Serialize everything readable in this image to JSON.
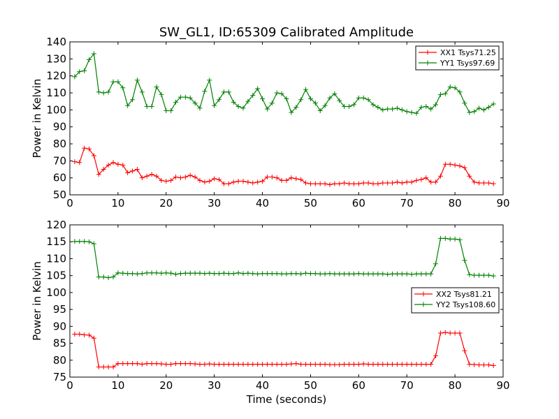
{
  "title": "SW_GL1, ID:65309 Calibrated Amplitude",
  "colors": {
    "red": "#ff0000",
    "green": "#008000",
    "axes": "#000000",
    "background": "#ffffff"
  },
  "chart_data": [
    {
      "type": "line",
      "title": "SW_GL1, ID:65309 Calibrated Amplitude",
      "xlabel": "",
      "ylabel": "Power in Kelvin",
      "xlim": [
        0,
        90
      ],
      "ylim": [
        50,
        140
      ],
      "xticks": [
        0,
        10,
        20,
        30,
        40,
        50,
        60,
        70,
        80,
        90
      ],
      "yticks": [
        50,
        60,
        70,
        80,
        90,
        100,
        110,
        120,
        130,
        140
      ],
      "grid": false,
      "legend_position": "top-right",
      "x": [
        1,
        2,
        3,
        4,
        5,
        6,
        7,
        8,
        9,
        10,
        11,
        12,
        13,
        14,
        15,
        16,
        17,
        18,
        19,
        20,
        21,
        22,
        23,
        24,
        25,
        26,
        27,
        28,
        29,
        30,
        31,
        32,
        33,
        34,
        35,
        36,
        37,
        38,
        39,
        40,
        41,
        42,
        43,
        44,
        45,
        46,
        47,
        48,
        49,
        50,
        51,
        52,
        53,
        54,
        55,
        56,
        57,
        58,
        59,
        60,
        61,
        62,
        63,
        64,
        65,
        66,
        67,
        68,
        69,
        70,
        71,
        72,
        73,
        74,
        75,
        76,
        77,
        78,
        79,
        80,
        81,
        82,
        83,
        84,
        85,
        86,
        87,
        88
      ],
      "series": [
        {
          "name": "XX1 Tsys71.25",
          "color": "#ff0000",
          "values": [
            69.5,
            69,
            77.5,
            77,
            73,
            62,
            65,
            67.5,
            69,
            68,
            67.5,
            63,
            64,
            65,
            60,
            61,
            62,
            61,
            58.5,
            58,
            58.5,
            60.5,
            60,
            60.5,
            61.5,
            60.5,
            58.5,
            57.5,
            58,
            59.5,
            59,
            56.5,
            56.5,
            57.5,
            58,
            58,
            57.5,
            57,
            57.5,
            58,
            60.5,
            60.5,
            60,
            58.5,
            58.5,
            60,
            59.5,
            59,
            57,
            56.5,
            56.5,
            56.5,
            56.5,
            56,
            56.5,
            56.5,
            57,
            56.5,
            56.5,
            56.5,
            57,
            57,
            56.5,
            56.5,
            57,
            57,
            57,
            57.5,
            57,
            57.5,
            57.5,
            58.5,
            59,
            60,
            57.5,
            57.5,
            61,
            68,
            68,
            67.5,
            67,
            66,
            61,
            57.5,
            57,
            57,
            57,
            56.5
          ]
        },
        {
          "name": "YY1 Tsys97.69",
          "color": "#008000",
          "values": [
            119.5,
            122.5,
            123,
            129.5,
            133,
            110.5,
            110,
            110.5,
            116.5,
            116.5,
            113,
            102.5,
            106,
            117.5,
            110.5,
            102,
            102,
            113.5,
            109,
            99.5,
            99.5,
            104.5,
            107.5,
            107.5,
            107,
            104,
            101,
            111,
            117.5,
            102.5,
            106,
            110.5,
            110.5,
            104.5,
            102,
            101,
            105,
            108.5,
            112.5,
            106.5,
            100.5,
            104,
            110,
            109.5,
            106.5,
            98.5,
            101.5,
            106,
            112,
            106.5,
            104,
            99.5,
            102.5,
            107,
            109.5,
            105.5,
            102,
            102,
            103,
            107,
            107,
            106,
            103,
            101.5,
            100,
            100.5,
            100.5,
            101,
            100,
            99,
            98.5,
            98,
            101.5,
            102,
            100.5,
            103,
            109,
            109.5,
            113.5,
            113,
            110.5,
            104,
            98.5,
            99,
            101,
            100,
            101.5,
            103.5
          ]
        }
      ]
    },
    {
      "type": "line",
      "title": "",
      "xlabel": "Time (seconds)",
      "ylabel": "Power in Kelvin",
      "xlim": [
        0,
        90
      ],
      "ylim": [
        75,
        120
      ],
      "xticks": [
        0,
        10,
        20,
        30,
        40,
        50,
        60,
        70,
        80,
        90
      ],
      "yticks": [
        75,
        80,
        85,
        90,
        95,
        100,
        105,
        110,
        115,
        120
      ],
      "grid": false,
      "legend_position": "center-right",
      "x": [
        1,
        2,
        3,
        4,
        5,
        6,
        7,
        8,
        9,
        10,
        11,
        12,
        13,
        14,
        15,
        16,
        17,
        18,
        19,
        20,
        21,
        22,
        23,
        24,
        25,
        26,
        27,
        28,
        29,
        30,
        31,
        32,
        33,
        34,
        35,
        36,
        37,
        38,
        39,
        40,
        41,
        42,
        43,
        44,
        45,
        46,
        47,
        48,
        49,
        50,
        51,
        52,
        53,
        54,
        55,
        56,
        57,
        58,
        59,
        60,
        61,
        62,
        63,
        64,
        65,
        66,
        67,
        68,
        69,
        70,
        71,
        72,
        73,
        74,
        75,
        76,
        77,
        78,
        79,
        80,
        81,
        82,
        83,
        84,
        85,
        86,
        87,
        88
      ],
      "series": [
        {
          "name": "XX2 Tsys81.21",
          "color": "#ff0000",
          "values": [
            87.7,
            87.7,
            87.5,
            87.4,
            86.5,
            78,
            78,
            78,
            78,
            79,
            79,
            79,
            79,
            79,
            78.8,
            79,
            79,
            79,
            78.9,
            78.8,
            78.8,
            79,
            79,
            79,
            79,
            78.9,
            78.8,
            78.8,
            78.9,
            78.8,
            78.8,
            78.8,
            78.8,
            78.8,
            78.8,
            78.8,
            78.8,
            78.8,
            78.8,
            78.8,
            78.8,
            78.8,
            78.8,
            78.8,
            78.8,
            78.9,
            79,
            78.8,
            78.8,
            78.8,
            78.8,
            78.8,
            78.8,
            78.7,
            78.7,
            78.7,
            78.8,
            78.8,
            78.8,
            78.8,
            78.9,
            78.8,
            78.8,
            78.8,
            78.8,
            78.8,
            78.8,
            78.8,
            78.8,
            78.8,
            78.8,
            78.8,
            78.8,
            78.8,
            78.8,
            81.3,
            88,
            88.2,
            88,
            88,
            88,
            82.8,
            78.8,
            78.7,
            78.6,
            78.6,
            78.6,
            78.4
          ]
        },
        {
          "name": "YY2 Tsys108.60",
          "color": "#008000",
          "values": [
            115.1,
            115.1,
            115.1,
            115,
            114.4,
            104.6,
            104.6,
            104.4,
            104.6,
            105.8,
            105.7,
            105.6,
            105.6,
            105.5,
            105.6,
            105.8,
            105.8,
            105.8,
            105.7,
            105.8,
            105.7,
            105.4,
            105.6,
            105.7,
            105.7,
            105.7,
            105.7,
            105.6,
            105.7,
            105.6,
            105.6,
            105.7,
            105.6,
            105.6,
            105.8,
            105.6,
            105.7,
            105.6,
            105.5,
            105.6,
            105.6,
            105.6,
            105.6,
            105.5,
            105.5,
            105.6,
            105.6,
            105.5,
            105.7,
            105.6,
            105.6,
            105.5,
            105.5,
            105.6,
            105.5,
            105.5,
            105.5,
            105.5,
            105.5,
            105.6,
            105.5,
            105.5,
            105.5,
            105.5,
            105.5,
            105.4,
            105.5,
            105.5,
            105.5,
            105.5,
            105.4,
            105.5,
            105.5,
            105.5,
            105.5,
            108.5,
            116,
            116,
            115.8,
            115.8,
            115.6,
            109.5,
            105.3,
            105.1,
            105.1,
            105.1,
            105.1,
            104.9
          ]
        }
      ]
    }
  ]
}
